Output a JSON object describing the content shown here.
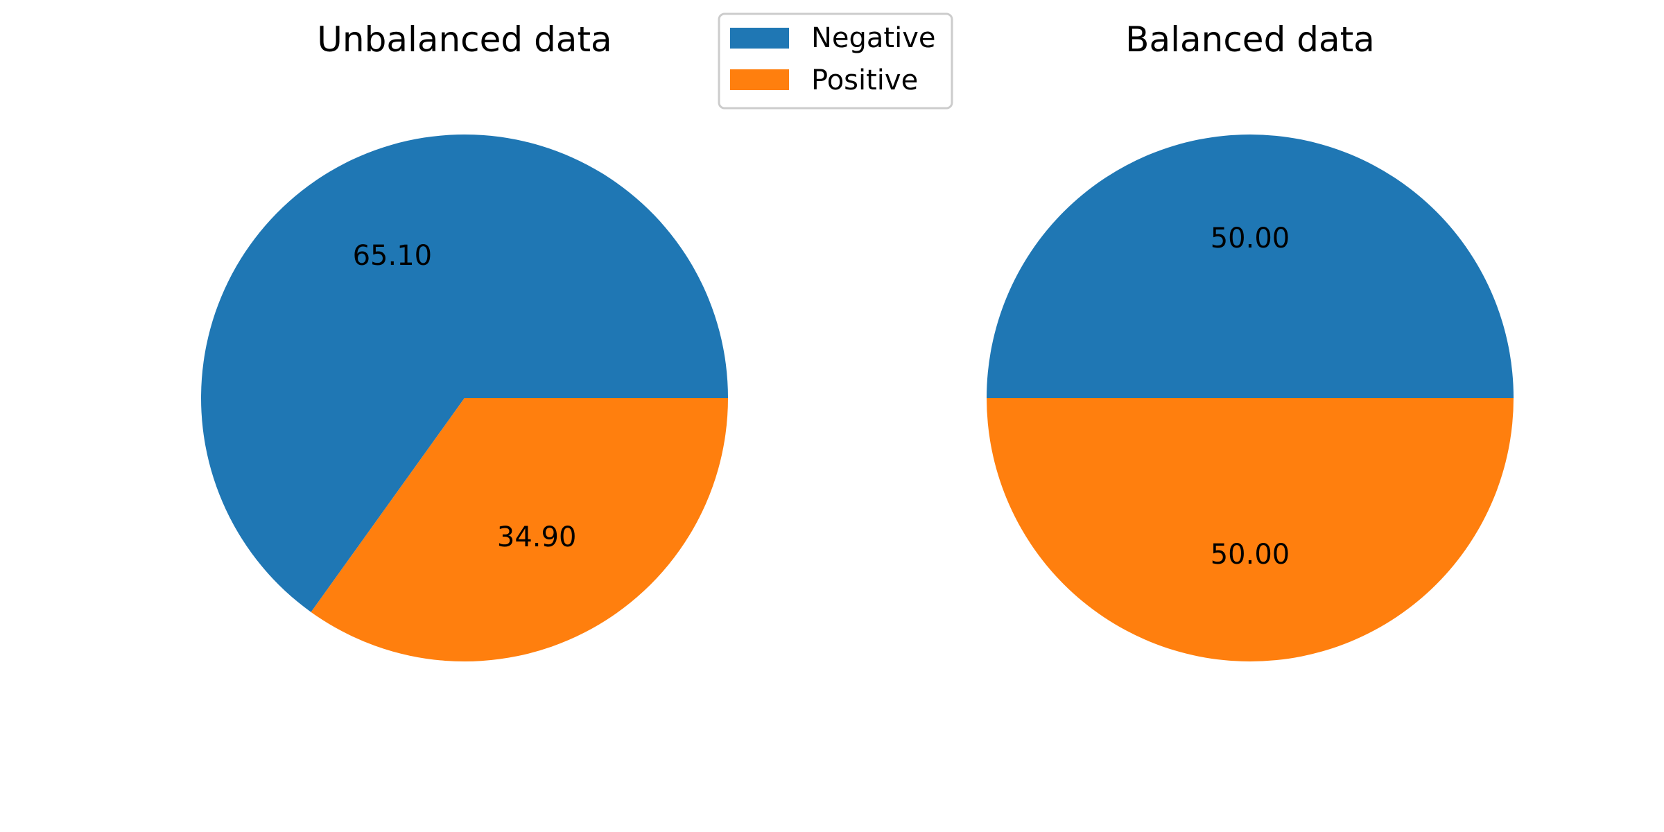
{
  "chart_data": [
    {
      "type": "pie",
      "title": "Unbalanced data",
      "categories": [
        "Negative",
        "Positive"
      ],
      "values": [
        65.1,
        34.9
      ],
      "labels": [
        "65.10",
        "34.90"
      ],
      "colors": [
        "#1f77b4",
        "#ff7f0e"
      ],
      "start_angle_deg": 0,
      "direction": "counterclockwise"
    },
    {
      "type": "pie",
      "title": "Balanced data",
      "categories": [
        "Negative",
        "Positive"
      ],
      "values": [
        50.0,
        50.0
      ],
      "labels": [
        "50.00",
        "50.00"
      ],
      "colors": [
        "#1f77b4",
        "#ff7f0e"
      ],
      "start_angle_deg": 0,
      "direction": "counterclockwise"
    }
  ],
  "legend": {
    "placement": "top-center",
    "items": [
      {
        "label": "Negative",
        "color": "#1f77b4"
      },
      {
        "label": "Positive",
        "color": "#ff7f0e"
      }
    ]
  }
}
